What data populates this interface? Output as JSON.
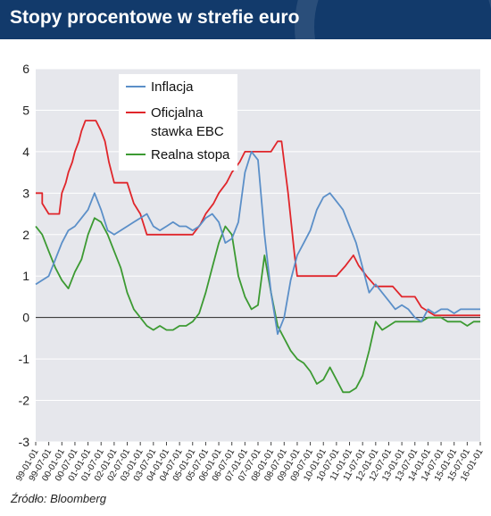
{
  "title": "Stopy procentowe w strefie euro",
  "source": "Źródło: Bloomberg",
  "colors": {
    "header_bg": "#123a6b",
    "plot_bg": "#e6e7ec",
    "inflacja": "#5b8fc8",
    "stawka": "#e0262b",
    "realna": "#3c9a32"
  },
  "chart_data": {
    "type": "line",
    "x_tick_labels": [
      "99-01-01",
      "99-07-01",
      "00-01-01",
      "00-07-01",
      "01-01-01",
      "01-07-01",
      "02-01-01",
      "02-07-01",
      "03-01-01",
      "03-07-01",
      "04-01-01",
      "04-07-01",
      "05-01-01",
      "05-07-01",
      "06-01-01",
      "06-07-01",
      "07-01-01",
      "07-07-01",
      "08-01-01",
      "08-07-01",
      "09-01-01",
      "09-07-01",
      "10-01-01",
      "10-07-01",
      "11-01-01",
      "11-07-01",
      "12-01-01",
      "12-07-01",
      "13-01-01",
      "13-07-01",
      "14-01-01",
      "14-07-01",
      "15-01-01",
      "15-07-01",
      "16-01-01"
    ],
    "ylim": [
      -3,
      6
    ],
    "y_ticks": [
      "6",
      "5",
      "4",
      "3",
      "2",
      "1",
      "0",
      "-1",
      "-2",
      "-3"
    ],
    "grid": "horizontal",
    "legend": {
      "position": "top-left",
      "entries": [
        "Inflacja",
        "Oficjalna stawka EBC",
        "Realna stopa"
      ]
    },
    "series": [
      {
        "name": "Inflacja",
        "key": "inflacja",
        "x": [
          0,
          0.5,
          1,
          1.5,
          2,
          2.5,
          3,
          3.5,
          4,
          4.5,
          5,
          5.5,
          6,
          6.5,
          7,
          7.5,
          8,
          8.5,
          9,
          9.5,
          10,
          10.5,
          11,
          11.5,
          12,
          12.5,
          13,
          13.5,
          14,
          14.5,
          15,
          15.5,
          16,
          16.5,
          17,
          17.5,
          18,
          18.5,
          19,
          19.5,
          20,
          20.5,
          21,
          21.5,
          22,
          22.5,
          23,
          23.5,
          24,
          24.5,
          25,
          25.5,
          26,
          26.5,
          27,
          27.5,
          28,
          28.5,
          29,
          29.5,
          30,
          30.5,
          31,
          31.5,
          32,
          32.5,
          33,
          33.5,
          34
        ],
        "values": [
          0.8,
          0.9,
          1.0,
          1.4,
          1.8,
          2.1,
          2.2,
          2.4,
          2.6,
          3.0,
          2.6,
          2.1,
          2.0,
          2.1,
          2.2,
          2.3,
          2.4,
          2.5,
          2.2,
          2.1,
          2.2,
          2.3,
          2.2,
          2.2,
          2.1,
          2.2,
          2.4,
          2.5,
          2.3,
          1.8,
          1.9,
          2.3,
          3.5,
          4.0,
          3.8,
          2.0,
          0.6,
          -0.4,
          0.0,
          0.9,
          1.5,
          1.8,
          2.1,
          2.6,
          2.9,
          3.0,
          2.8,
          2.6,
          2.2,
          1.8,
          1.2,
          0.6,
          0.8,
          0.6,
          0.4,
          0.2,
          0.3,
          0.2,
          0.0,
          -0.1,
          0.2,
          0.1,
          0.2,
          0.2,
          0.1,
          0.2,
          0.2,
          0.2,
          0.2
        ]
      },
      {
        "name": "Oficjalna stawka EBC",
        "key": "stawka",
        "x": [
          0,
          0.5,
          0.5,
          1.0,
          1.4,
          1.8,
          2.0,
          2.3,
          2.5,
          2.8,
          3.0,
          3.3,
          3.5,
          3.8,
          4.0,
          4.3,
          4.6,
          5.0,
          5.3,
          5.6,
          6.0,
          6.3,
          6.6,
          7.0,
          7.5,
          8.0,
          8.5,
          9.0,
          9.5,
          10.0,
          11.0,
          12.0,
          12.6,
          13.0,
          13.6,
          14.0,
          14.6,
          15.0,
          15.6,
          16.0,
          16.5,
          17.0,
          17.5,
          18.0,
          18.5,
          18.8,
          19.0,
          19.3,
          19.8,
          20.0,
          22.0,
          23.0,
          23.7,
          24.3,
          24.7,
          25.3,
          26.0,
          26.7,
          27.3,
          28.0,
          29.0,
          29.5,
          30.0,
          30.5,
          31.0,
          34.0
        ],
        "values": [
          3.0,
          3.0,
          2.75,
          2.5,
          2.5,
          2.5,
          3.0,
          3.25,
          3.5,
          3.75,
          4.0,
          4.25,
          4.5,
          4.75,
          4.75,
          4.75,
          4.75,
          4.5,
          4.25,
          3.75,
          3.25,
          3.25,
          3.25,
          3.25,
          2.75,
          2.5,
          2.0,
          2.0,
          2.0,
          2.0,
          2.0,
          2.0,
          2.25,
          2.5,
          2.75,
          3.0,
          3.25,
          3.5,
          3.75,
          4.0,
          4.0,
          4.0,
          4.0,
          4.0,
          4.25,
          4.25,
          3.75,
          3.0,
          1.5,
          1.0,
          1.0,
          1.0,
          1.25,
          1.5,
          1.25,
          1.0,
          0.75,
          0.75,
          0.75,
          0.5,
          0.5,
          0.25,
          0.15,
          0.05,
          0.05,
          0.05
        ]
      },
      {
        "name": "Realna stopa",
        "key": "realna",
        "x": [
          0,
          0.5,
          1,
          1.5,
          2,
          2.5,
          3,
          3.5,
          4,
          4.5,
          5,
          5.5,
          6,
          6.5,
          7,
          7.5,
          8,
          8.5,
          9,
          9.5,
          10,
          10.5,
          11,
          11.5,
          12,
          12.5,
          13,
          13.5,
          14,
          14.5,
          15,
          15.5,
          16,
          16.5,
          17,
          17.5,
          18,
          18.5,
          19,
          19.5,
          20,
          20.5,
          21,
          21.5,
          22,
          22.5,
          23,
          23.5,
          24,
          24.5,
          25,
          25.5,
          26,
          26.5,
          27,
          27.5,
          28,
          28.5,
          29,
          29.5,
          30,
          30.5,
          31,
          31.5,
          32,
          32.5,
          33,
          33.5,
          34
        ],
        "values": [
          2.2,
          2.0,
          1.6,
          1.2,
          0.9,
          0.7,
          1.1,
          1.4,
          2.0,
          2.4,
          2.3,
          2.0,
          1.6,
          1.2,
          0.6,
          0.2,
          0.0,
          -0.2,
          -0.3,
          -0.2,
          -0.3,
          -0.3,
          -0.2,
          -0.2,
          -0.1,
          0.1,
          0.6,
          1.2,
          1.8,
          2.2,
          2.0,
          1.0,
          0.5,
          0.2,
          0.3,
          1.5,
          0.6,
          -0.2,
          -0.5,
          -0.8,
          -1.0,
          -1.1,
          -1.3,
          -1.6,
          -1.5,
          -1.2,
          -1.5,
          -1.8,
          -1.8,
          -1.7,
          -1.4,
          -0.8,
          -0.1,
          -0.3,
          -0.2,
          -0.1,
          -0.1,
          -0.1,
          -0.1,
          -0.1,
          0.0,
          0.0,
          0.0,
          -0.1,
          -0.1,
          -0.1,
          -0.2,
          -0.1,
          -0.1
        ]
      }
    ]
  }
}
